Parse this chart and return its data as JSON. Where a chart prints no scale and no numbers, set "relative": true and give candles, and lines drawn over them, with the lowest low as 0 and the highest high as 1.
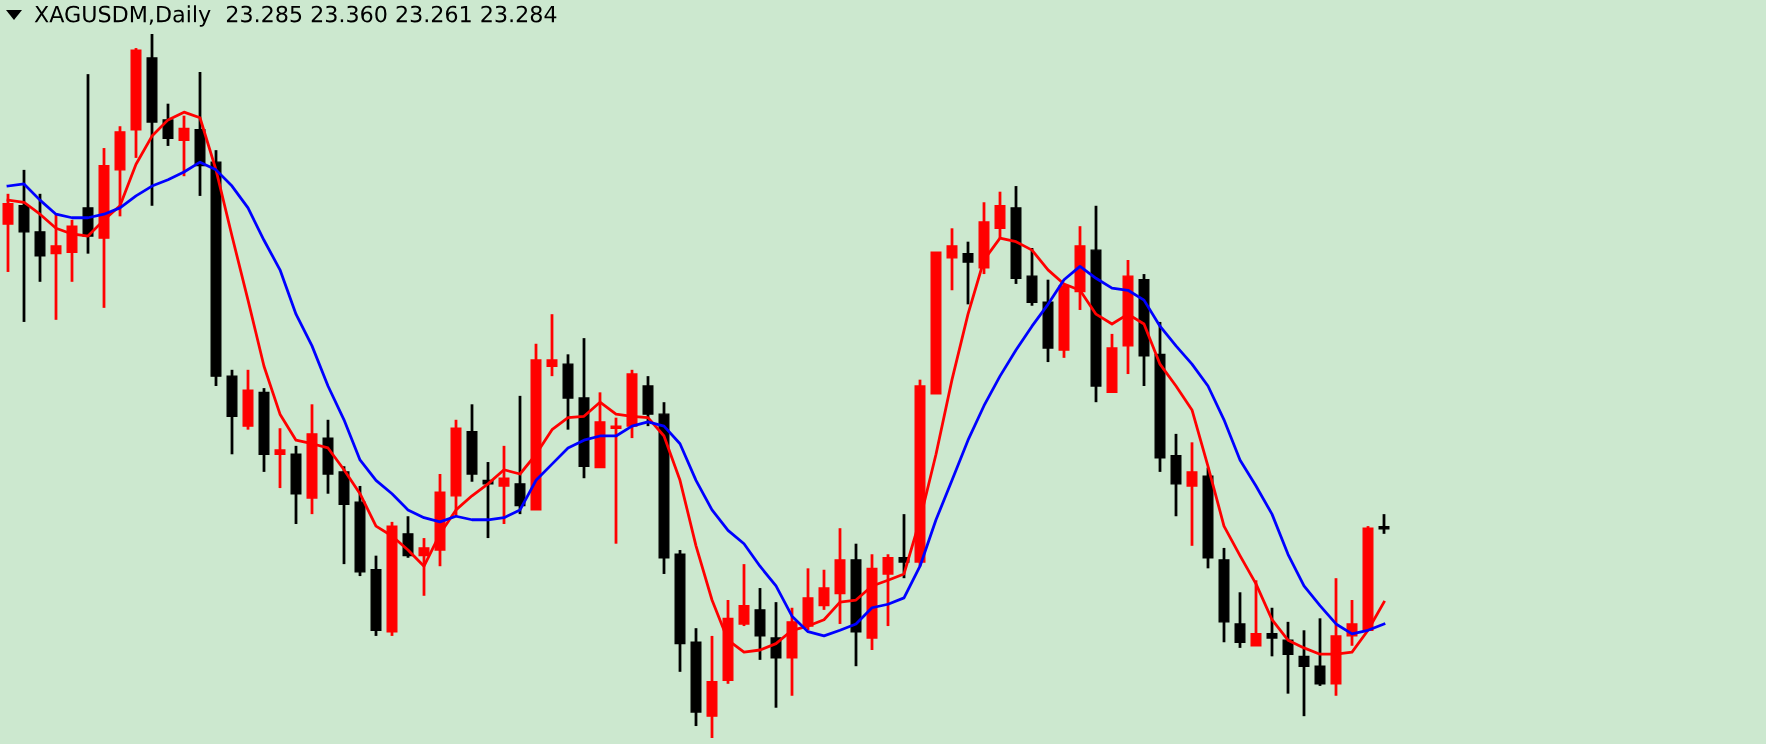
{
  "chart_data": {
    "type": "candlestick",
    "title": "XAGUSDM,Daily  23.285 23.360 23.261 23.284",
    "relative": true,
    "categories": [
      null,
      null,
      null,
      null,
      null,
      null,
      null,
      null,
      null,
      null,
      null,
      null,
      null,
      null,
      null,
      null,
      null,
      null,
      null,
      null,
      null,
      null,
      null,
      null,
      null,
      null,
      null,
      null,
      null,
      null,
      null,
      null,
      null,
      null,
      null,
      null,
      null,
      null,
      null,
      null,
      null,
      null,
      null,
      null,
      null,
      null,
      null,
      null,
      null,
      null,
      null,
      null,
      null,
      null,
      null,
      null,
      null,
      null,
      null,
      null,
      null,
      null,
      null,
      null,
      null,
      null,
      null,
      null,
      null,
      null,
      null,
      null,
      null,
      null,
      null,
      null,
      null,
      null,
      null,
      null,
      null,
      null,
      null,
      null,
      null,
      null,
      null
    ],
    "ohlc": [
      [
        0.73,
        0.773,
        0.662,
        0.759
      ],
      [
        0.756,
        0.807,
        0.591,
        0.719
      ],
      [
        0.719,
        0.773,
        0.648,
        0.685
      ],
      [
        0.688,
        0.744,
        0.594,
        0.699
      ],
      [
        0.69,
        0.736,
        0.648,
        0.727
      ],
      [
        0.753,
        0.943,
        0.688,
        0.713
      ],
      [
        0.71,
        0.838,
        0.611,
        0.813
      ],
      [
        0.807,
        0.869,
        0.741,
        0.861
      ],
      [
        0.864,
        0.98,
        0.824,
        0.977
      ],
      [
        0.966,
        1.0,
        0.756,
        0.875
      ],
      [
        0.878,
        0.901,
        0.841,
        0.852
      ],
      [
        0.849,
        0.884,
        0.798,
        0.866
      ],
      [
        0.864,
        0.946,
        0.77,
        0.813
      ],
      [
        0.818,
        0.835,
        0.5,
        0.514
      ],
      [
        0.514,
        0.523,
        0.403,
        0.457
      ],
      [
        0.443,
        0.523,
        0.438,
        0.494
      ],
      [
        0.491,
        0.497,
        0.378,
        0.403
      ],
      [
        0.403,
        0.44,
        0.355,
        0.409
      ],
      [
        0.403,
        0.415,
        0.304,
        0.347
      ],
      [
        0.341,
        0.474,
        0.318,
        0.432
      ],
      [
        0.426,
        0.452,
        0.347,
        0.375
      ],
      [
        0.378,
        0.386,
        0.247,
        0.332
      ],
      [
        0.335,
        0.358,
        0.23,
        0.236
      ],
      [
        0.239,
        0.259,
        0.145,
        0.153
      ],
      [
        0.151,
        0.307,
        0.145,
        0.301
      ],
      [
        0.29,
        0.315,
        0.256,
        0.259
      ],
      [
        0.259,
        0.284,
        0.202,
        0.27
      ],
      [
        0.267,
        0.375,
        0.244,
        0.349
      ],
      [
        0.344,
        0.452,
        0.315,
        0.44
      ],
      [
        0.435,
        0.474,
        0.364,
        0.375
      ],
      [
        0.366,
        0.392,
        0.284,
        0.361
      ],
      [
        0.358,
        0.415,
        0.304,
        0.369
      ],
      [
        0.361,
        0.486,
        0.318,
        0.33
      ],
      [
        0.324,
        0.56,
        0.324,
        0.537
      ],
      [
        0.528,
        0.602,
        0.514,
        0.537
      ],
      [
        0.531,
        0.545,
        0.438,
        0.483
      ],
      [
        0.483,
        0.568,
        0.369,
        0.386
      ],
      [
        0.384,
        0.491,
        0.384,
        0.449
      ],
      [
        0.44,
        0.455,
        0.276,
        0.443
      ],
      [
        0.443,
        0.523,
        0.426,
        0.517
      ],
      [
        0.5,
        0.514,
        0.443,
        0.46
      ],
      [
        0.46,
        0.477,
        0.233,
        0.256
      ],
      [
        0.261,
        0.267,
        0.094,
        0.134
      ],
      [
        0.136,
        0.156,
        0.017,
        0.037
      ],
      [
        0.031,
        0.145,
        0.0,
        0.08
      ],
      [
        0.082,
        0.196,
        0.077,
        0.17
      ],
      [
        0.162,
        0.247,
        0.159,
        0.188
      ],
      [
        0.182,
        0.213,
        0.111,
        0.145
      ],
      [
        0.142,
        0.193,
        0.043,
        0.114
      ],
      [
        0.114,
        0.185,
        0.06,
        0.165
      ],
      [
        0.159,
        0.241,
        0.153,
        0.199
      ],
      [
        0.188,
        0.239,
        0.182,
        0.213
      ],
      [
        0.205,
        0.298,
        0.162,
        0.253
      ],
      [
        0.253,
        0.276,
        0.102,
        0.151
      ],
      [
        0.142,
        0.261,
        0.125,
        0.241
      ],
      [
        0.233,
        0.261,
        0.159,
        0.256
      ],
      [
        0.256,
        0.318,
        0.227,
        0.25
      ],
      [
        0.25,
        0.509,
        0.244,
        0.5
      ],
      [
        0.489,
        0.69,
        0.489,
        0.69
      ],
      [
        0.682,
        0.724,
        0.636,
        0.699
      ],
      [
        0.688,
        0.705,
        0.616,
        0.676
      ],
      [
        0.668,
        0.761,
        0.659,
        0.733
      ],
      [
        0.724,
        0.776,
        0.71,
        0.756
      ],
      [
        0.753,
        0.784,
        0.645,
        0.653
      ],
      [
        0.656,
        0.696,
        0.614,
        0.619
      ],
      [
        0.619,
        0.651,
        0.534,
        0.554
      ],
      [
        0.551,
        0.645,
        0.54,
        0.642
      ],
      [
        0.634,
        0.727,
        0.608,
        0.699
      ],
      [
        0.693,
        0.756,
        0.477,
        0.5
      ],
      [
        0.491,
        0.574,
        0.491,
        0.554
      ],
      [
        0.557,
        0.679,
        0.517,
        0.656
      ],
      [
        0.651,
        0.659,
        0.5,
        0.543
      ],
      [
        0.545,
        0.591,
        0.378,
        0.398
      ],
      [
        0.401,
        0.432,
        0.315,
        0.361
      ],
      [
        0.358,
        0.42,
        0.273,
        0.378
      ],
      [
        0.372,
        0.384,
        0.241,
        0.256
      ],
      [
        0.253,
        0.27,
        0.136,
        0.165
      ],
      [
        0.162,
        0.207,
        0.128,
        0.136
      ],
      [
        0.131,
        0.224,
        0.131,
        0.148
      ],
      [
        0.148,
        0.185,
        0.116,
        0.142
      ],
      [
        0.139,
        0.165,
        0.063,
        0.119
      ],
      [
        0.116,
        0.153,
        0.031,
        0.102
      ],
      [
        0.102,
        0.17,
        0.074,
        0.077
      ],
      [
        0.077,
        0.227,
        0.06,
        0.145
      ],
      [
        0.145,
        0.196,
        0.131,
        0.162
      ],
      [
        0.153,
        0.301,
        0.153,
        0.298
      ],
      [
        0.298,
        0.318,
        0.29,
        0.297
      ]
    ],
    "colors": [
      "#ff0000",
      "#000000",
      "#000000",
      "#ff0000",
      "#ff0000",
      "#000000",
      "#ff0000",
      "#ff0000",
      "#ff0000",
      "#000000",
      "#000000",
      "#ff0000",
      "#000000",
      "#000000",
      "#000000",
      "#ff0000",
      "#000000",
      "#ff0000",
      "#000000",
      "#ff0000",
      "#000000",
      "#000000",
      "#000000",
      "#000000",
      "#ff0000",
      "#000000",
      "#ff0000",
      "#ff0000",
      "#ff0000",
      "#000000",
      "#000000",
      "#ff0000",
      "#000000",
      "#ff0000",
      "#ff0000",
      "#000000",
      "#000000",
      "#ff0000",
      "#ff0000",
      "#ff0000",
      "#000000",
      "#000000",
      "#000000",
      "#000000",
      "#ff0000",
      "#ff0000",
      "#ff0000",
      "#000000",
      "#000000",
      "#ff0000",
      "#ff0000",
      "#ff0000",
      "#ff0000",
      "#000000",
      "#ff0000",
      "#ff0000",
      "#000000",
      "#ff0000",
      "#ff0000",
      "#ff0000",
      "#000000",
      "#ff0000",
      "#ff0000",
      "#000000",
      "#000000",
      "#000000",
      "#ff0000",
      "#ff0000",
      "#000000",
      "#ff0000",
      "#ff0000",
      "#000000",
      "#000000",
      "#000000",
      "#ff0000",
      "#000000",
      "#000000",
      "#000000",
      "#ff0000",
      "#000000",
      "#000000",
      "#000000",
      "#000000",
      "#ff0000",
      "#ff0000",
      "#ff0000",
      "#000000"
    ],
    "series": [
      {
        "type": "line",
        "color": "#ff0000",
        "values": [
          0.764,
          0.761,
          0.744,
          0.724,
          0.716,
          0.713,
          0.736,
          0.756,
          0.815,
          0.855,
          0.878,
          0.889,
          0.881,
          0.807,
          0.713,
          0.622,
          0.528,
          0.46,
          0.423,
          0.418,
          0.412,
          0.381,
          0.347,
          0.301,
          0.287,
          0.267,
          0.244,
          0.29,
          0.324,
          0.344,
          0.361,
          0.381,
          0.375,
          0.403,
          0.438,
          0.455,
          0.457,
          0.477,
          0.46,
          0.457,
          0.455,
          0.429,
          0.366,
          0.273,
          0.196,
          0.139,
          0.122,
          0.125,
          0.134,
          0.153,
          0.159,
          0.168,
          0.193,
          0.196,
          0.216,
          0.224,
          0.233,
          0.31,
          0.403,
          0.509,
          0.602,
          0.679,
          0.71,
          0.705,
          0.693,
          0.665,
          0.645,
          0.636,
          0.602,
          0.588,
          0.602,
          0.588,
          0.531,
          0.5,
          0.466,
          0.386,
          0.301,
          0.259,
          0.219,
          0.168,
          0.139,
          0.128,
          0.119,
          0.119,
          0.122,
          0.153,
          0.193
        ]
      },
      {
        "type": "line",
        "color": "#0000ff",
        "values": [
          0.784,
          0.787,
          0.764,
          0.744,
          0.739,
          0.739,
          0.744,
          0.753,
          0.77,
          0.784,
          0.793,
          0.804,
          0.818,
          0.807,
          0.784,
          0.753,
          0.707,
          0.665,
          0.602,
          0.557,
          0.5,
          0.452,
          0.395,
          0.366,
          0.347,
          0.324,
          0.313,
          0.307,
          0.315,
          0.31,
          0.31,
          0.313,
          0.324,
          0.366,
          0.389,
          0.412,
          0.423,
          0.429,
          0.429,
          0.443,
          0.449,
          0.443,
          0.418,
          0.366,
          0.324,
          0.295,
          0.276,
          0.244,
          0.216,
          0.173,
          0.151,
          0.145,
          0.153,
          0.162,
          0.185,
          0.19,
          0.199,
          0.244,
          0.31,
          0.366,
          0.423,
          0.472,
          0.514,
          0.551,
          0.585,
          0.616,
          0.651,
          0.67,
          0.653,
          0.639,
          0.636,
          0.622,
          0.585,
          0.557,
          0.531,
          0.5,
          0.452,
          0.395,
          0.358,
          0.318,
          0.261,
          0.216,
          0.188,
          0.162,
          0.148,
          0.153,
          0.162
        ]
      }
    ]
  }
}
